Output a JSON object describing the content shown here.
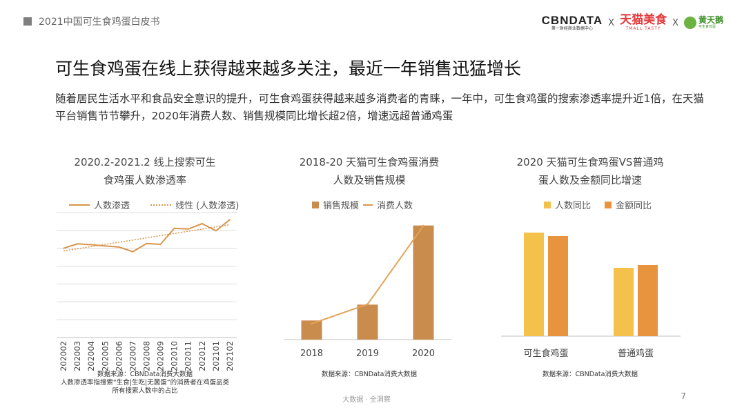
{
  "header": {
    "title": "2021中国可生食鸡蛋白皮书"
  },
  "logos": {
    "cbn_main": "CBNDATA",
    "cbn_sub": "第一财经商业数据中心",
    "sep1": "X",
    "tmall_main": "天猫美食",
    "tmall_sub": "TMALL TASTY",
    "sep2": "X",
    "htp_main": "黄天鹅",
    "htp_sub": "可生食鸡蛋"
  },
  "main_title": "可生食鸡蛋在线上获得越来越多关注，最近一年销售迅猛增长",
  "description": "随着居民生活水平和食品安全意识的提升，可生食鸡蛋获得越来越多消费者的青睐，一年中，可生食鸡蛋的搜索渗透率提升近1倍，在天猫平台销售节节攀升，2020年消费人数、销售规模同比增长超2倍，增速远超普通鸡蛋",
  "colors": {
    "orange": "#d9944a",
    "bar_brown": "#c98c4c",
    "yellow": "#f4c24a",
    "orange2": "#e8943e",
    "grid": "#dcdcdc"
  },
  "chart_data": [
    {
      "type": "line",
      "title_line1": "2020.2-2021.2 线上搜索可生",
      "title_line2": "食鸡蛋人数渗透率",
      "legend": [
        "人数渗透",
        "线性 (人数渗透)"
      ],
      "categories": [
        "202002",
        "202003",
        "202004",
        "202005",
        "202006",
        "202007",
        "202008",
        "202009",
        "202010",
        "202011",
        "202012",
        "202101",
        "202102"
      ],
      "series": [
        {
          "name": "人数渗透",
          "values": [
            1.0,
            1.25,
            1.2,
            1.13,
            1.07,
            0.81,
            1.27,
            1.22,
            2.12,
            2.08,
            2.38,
            1.98,
            2.6
          ]
        }
      ],
      "trendline": {
        "name": "线性 (人数渗透)",
        "start": 0.85,
        "end": 2.32
      },
      "ylim": [
        -4,
        3
      ],
      "grid": true,
      "source": [
        "数据来源：CBNData消费大数据",
        "人数渗透率指搜索“生食|生吃|无菌蛋”的消费者在鸡蛋品类",
        "所有搜索人数中的占比"
      ]
    },
    {
      "type": "bar",
      "title_line1": "2018-20 天猫可生食鸡蛋消费",
      "title_line2": "人数及销售规模",
      "legend": [
        "销售规模",
        "消费人数"
      ],
      "categories": [
        "2018",
        "2019",
        "2020"
      ],
      "series": [
        {
          "name": "销售规模",
          "kind": "bar",
          "values": [
            1.0,
            1.83,
            5.97
          ]
        },
        {
          "name": "消费人数",
          "kind": "line",
          "values": [
            0.83,
            1.85,
            5.95
          ]
        }
      ],
      "ylim": [
        0,
        6.5
      ],
      "source": [
        "数据来源：CBNData消费大数据"
      ]
    },
    {
      "type": "bar",
      "title_line1": "2020 天猫可生食鸡蛋VS普通鸡",
      "title_line2": "蛋人数及金额同比增速",
      "legend": [
        "人数同比",
        "金额同比"
      ],
      "categories": [
        "可生食鸡蛋",
        "普通鸡蛋"
      ],
      "series": [
        {
          "name": "人数同比",
          "values": [
            3.0,
            1.98
          ]
        },
        {
          "name": "金额同比",
          "values": [
            2.9,
            2.06
          ]
        }
      ],
      "ylim": [
        0,
        3.5
      ],
      "source": [
        "数据来源：CBNData消费大数据"
      ]
    }
  ],
  "footer": {
    "text": "大数据 · 全洞察",
    "page": "7"
  }
}
